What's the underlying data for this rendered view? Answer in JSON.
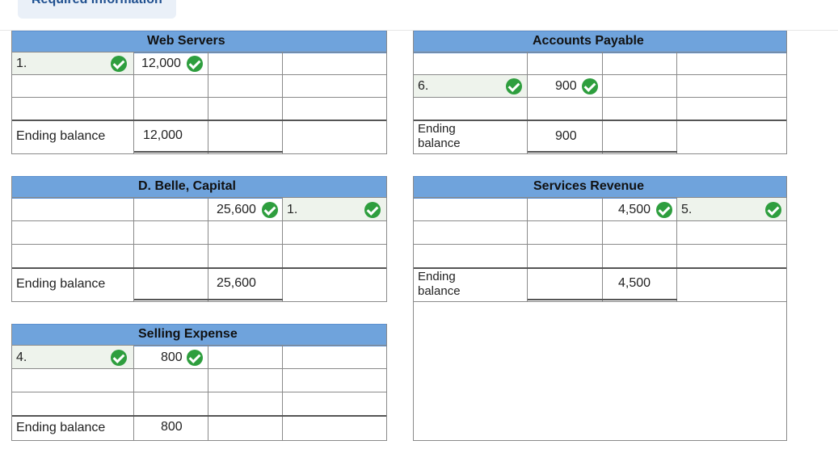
{
  "header": {
    "tab_label": "Required information"
  },
  "accounts": {
    "web_servers": {
      "title": "Web Servers",
      "entry1_ref": "1.",
      "entry1_amount": "12,000",
      "ending_label": "Ending balance",
      "ending_amount": "12,000"
    },
    "accounts_payable": {
      "title": "Accounts Payable",
      "entry1_ref": "6.",
      "entry1_amount": "900",
      "ending_label": "Ending balance",
      "ending_amount": "900"
    },
    "belle_capital": {
      "title": "D. Belle, Capital",
      "entry1_amount": "25,600",
      "entry1_ref": "1.",
      "ending_label": "Ending balance",
      "ending_amount": "25,600"
    },
    "services_revenue": {
      "title": "Services Revenue",
      "entry1_amount": "4,500",
      "entry1_ref": "5.",
      "ending_label": "Ending balance",
      "ending_amount": "4,500"
    },
    "selling_expense": {
      "title": "Selling Expense",
      "entry1_ref": "4.",
      "entry1_amount": "800",
      "ending_label": "Ending balance",
      "ending_amount": "800"
    }
  },
  "colors": {
    "header_bg": "#6fa3dc",
    "check": "#2e9e3e",
    "tab_bg": "#eaf0f8"
  },
  "icons": {
    "status": "check-circle-icon"
  }
}
